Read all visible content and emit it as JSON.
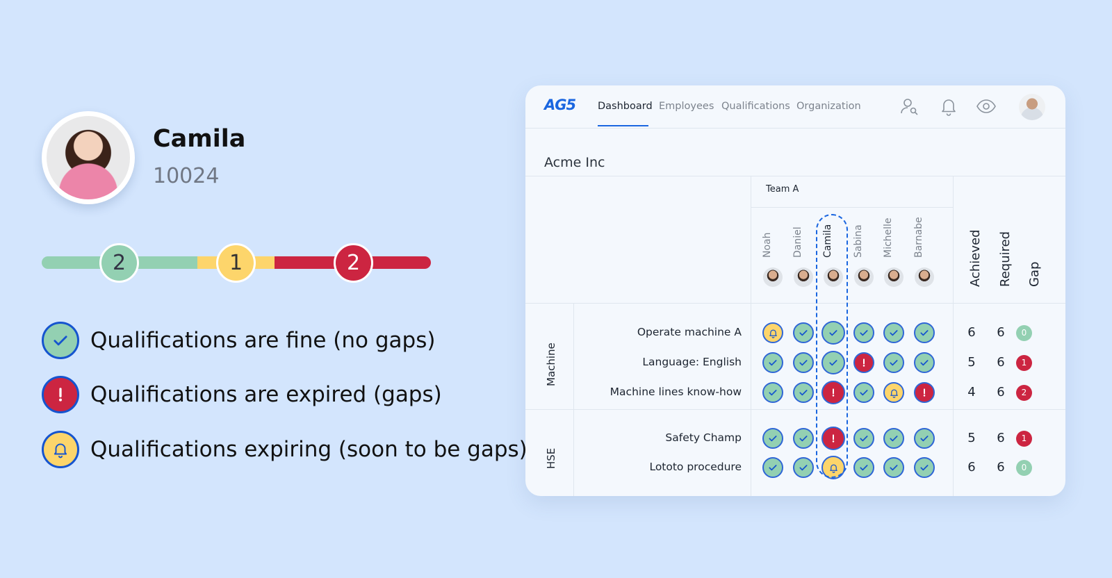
{
  "profile": {
    "name": "Camila",
    "employee_id": "10024"
  },
  "progress": {
    "segments": [
      {
        "status": "fine",
        "count": "2",
        "color": "#93d0b2"
      },
      {
        "status": "expiring",
        "count": "1",
        "color": "#fdd56b"
      },
      {
        "status": "expired",
        "count": "2",
        "color": "#cc2541"
      }
    ]
  },
  "legend": [
    {
      "icon": "check-icon",
      "text": "Qualifications are fine (no gaps)"
    },
    {
      "icon": "exclamation-icon",
      "text": "Qualifications are expired (gaps)"
    },
    {
      "icon": "bell-icon",
      "text": "Qualifications expiring (soon to be gaps)"
    }
  ],
  "app": {
    "logo": "AG5",
    "nav": [
      "Dashboard",
      "Employees",
      "Qualifications",
      "Organization"
    ],
    "active_nav": "Dashboard",
    "icons": [
      "user-search-icon",
      "bell-icon",
      "eye-icon",
      "user-avatar"
    ],
    "company": "Acme Inc",
    "team": "Team A",
    "employees": [
      "Noah",
      "Daniel",
      "Camila",
      "Sabina",
      "Michelle",
      "Barnabe"
    ],
    "highlighted_employee": "Camila",
    "summary_headers": [
      "Achieved",
      "Required",
      "Gap"
    ],
    "groups": [
      {
        "name": "Machine",
        "rows": [
          {
            "label": "Operate machine A",
            "statuses": [
              "warn",
              "ok",
              "ok",
              "ok",
              "ok",
              "ok"
            ],
            "achieved": "6",
            "required": "6",
            "gap": "0"
          },
          {
            "label": "Language: English",
            "statuses": [
              "ok",
              "ok",
              "ok",
              "bad",
              "ok",
              "ok"
            ],
            "achieved": "5",
            "required": "6",
            "gap": "1"
          },
          {
            "label": "Machine lines know-how",
            "statuses": [
              "ok",
              "ok",
              "bad",
              "ok",
              "warn",
              "bad"
            ],
            "achieved": "4",
            "required": "6",
            "gap": "2"
          }
        ]
      },
      {
        "name": "HSE",
        "rows": [
          {
            "label": "Safety Champ",
            "statuses": [
              "ok",
              "ok",
              "bad",
              "ok",
              "ok",
              "ok"
            ],
            "achieved": "5",
            "required": "6",
            "gap": "1"
          },
          {
            "label": "Lototo procedure",
            "statuses": [
              "ok",
              "ok",
              "warn",
              "ok",
              "ok",
              "ok"
            ],
            "achieved": "6",
            "required": "6",
            "gap": "0"
          }
        ]
      }
    ]
  },
  "colors": {
    "fine": "#93d0b2",
    "expiring": "#fdd56b",
    "expired": "#cc2541",
    "accent": "#1a66e0",
    "background": "#d3e5fd"
  }
}
